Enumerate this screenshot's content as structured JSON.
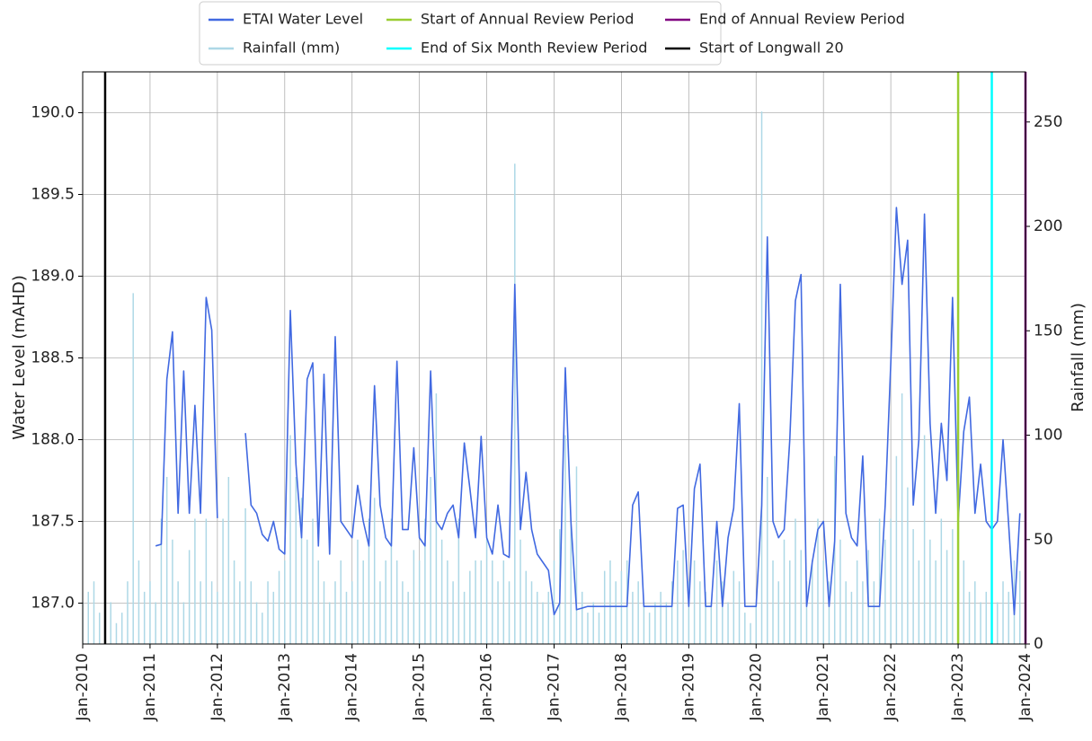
{
  "chart_data": {
    "type": "line",
    "y_label": "Water Level (mAHD)",
    "y2_label": "Rainfall (mm)",
    "xlim": [
      "2010-01",
      "2024-01"
    ],
    "xticks": [
      {
        "value": "2010-01",
        "label": "Jan-2010"
      },
      {
        "value": "2011-01",
        "label": "Jan-2011"
      },
      {
        "value": "2012-01",
        "label": "Jan-2012"
      },
      {
        "value": "2013-01",
        "label": "Jan-2013"
      },
      {
        "value": "2014-01",
        "label": "Jan-2014"
      },
      {
        "value": "2015-01",
        "label": "Jan-2015"
      },
      {
        "value": "2016-01",
        "label": "Jan-2016"
      },
      {
        "value": "2017-01",
        "label": "Jan-2017"
      },
      {
        "value": "2018-01",
        "label": "Jan-2018"
      },
      {
        "value": "2019-01",
        "label": "Jan-2019"
      },
      {
        "value": "2020-01",
        "label": "Jan-2020"
      },
      {
        "value": "2021-01",
        "label": "Jan-2021"
      },
      {
        "value": "2022-01",
        "label": "Jan-2022"
      },
      {
        "value": "2023-01",
        "label": "Jan-2023"
      },
      {
        "value": "2024-01",
        "label": "Jan-2024"
      }
    ],
    "ylim": [
      186.75,
      190.25
    ],
    "yticks": [
      {
        "value": 187,
        "label": "187.0"
      },
      {
        "value": 187.5,
        "label": "187.5"
      },
      {
        "value": 188,
        "label": "188.0"
      },
      {
        "value": 188.5,
        "label": "188.5"
      },
      {
        "value": 189,
        "label": "189.0"
      },
      {
        "value": 189.5,
        "label": "189.5"
      },
      {
        "value": 190,
        "label": "190.0"
      }
    ],
    "y2lim": [
      0,
      274
    ],
    "y2ticks": [
      0,
      50,
      100,
      150,
      200,
      250
    ],
    "grid": true,
    "legend": "upper center",
    "x": [
      "2010-01",
      "2010-02",
      "2010-03",
      "2010-04",
      "2010-05",
      "2010-06",
      "2010-07",
      "2010-08",
      "2010-09",
      "2010-10",
      "2010-11",
      "2010-12",
      "2011-01",
      "2011-02",
      "2011-03",
      "2011-04",
      "2011-05",
      "2011-06",
      "2011-07",
      "2011-08",
      "2011-09",
      "2011-10",
      "2011-11",
      "2011-12",
      "2012-01",
      "2012-02",
      "2012-03",
      "2012-04",
      "2012-05",
      "2012-06",
      "2012-07",
      "2012-08",
      "2012-09",
      "2012-10",
      "2012-11",
      "2012-12",
      "2013-01",
      "2013-02",
      "2013-03",
      "2013-04",
      "2013-05",
      "2013-06",
      "2013-07",
      "2013-08",
      "2013-09",
      "2013-10",
      "2013-11",
      "2013-12",
      "2014-01",
      "2014-02",
      "2014-03",
      "2014-04",
      "2014-05",
      "2014-06",
      "2014-07",
      "2014-08",
      "2014-09",
      "2014-10",
      "2014-11",
      "2014-12",
      "2015-01",
      "2015-02",
      "2015-03",
      "2015-04",
      "2015-05",
      "2015-06",
      "2015-07",
      "2015-08",
      "2015-09",
      "2015-10",
      "2015-11",
      "2015-12",
      "2016-01",
      "2016-02",
      "2016-03",
      "2016-04",
      "2016-05",
      "2016-06",
      "2016-07",
      "2016-08",
      "2016-09",
      "2016-10",
      "2016-11",
      "2016-12",
      "2017-01",
      "2017-02",
      "2017-03",
      "2017-04",
      "2017-05",
      "2017-06",
      "2017-07",
      "2017-08",
      "2017-09",
      "2017-10",
      "2017-11",
      "2017-12",
      "2018-01",
      "2018-02",
      "2018-03",
      "2018-04",
      "2018-05",
      "2018-06",
      "2018-07",
      "2018-08",
      "2018-09",
      "2018-10",
      "2018-11",
      "2018-12",
      "2019-01",
      "2019-02",
      "2019-03",
      "2019-04",
      "2019-05",
      "2019-06",
      "2019-07",
      "2019-08",
      "2019-09",
      "2019-10",
      "2019-11",
      "2019-12",
      "2020-01",
      "2020-02",
      "2020-03",
      "2020-04",
      "2020-05",
      "2020-06",
      "2020-07",
      "2020-08",
      "2020-09",
      "2020-10",
      "2020-11",
      "2020-12",
      "2021-01",
      "2021-02",
      "2021-03",
      "2021-04",
      "2021-05",
      "2021-06",
      "2021-07",
      "2021-08",
      "2021-09",
      "2021-10",
      "2021-11",
      "2021-12",
      "2022-01",
      "2022-02",
      "2022-03",
      "2022-04",
      "2022-05",
      "2022-06",
      "2022-07",
      "2022-08",
      "2022-09",
      "2022-10",
      "2022-11",
      "2022-12",
      "2023-01",
      "2023-02",
      "2023-03",
      "2023-04",
      "2023-05",
      "2023-06",
      "2023-07",
      "2023-08",
      "2023-09",
      "2023-10",
      "2023-11",
      "2023-12"
    ],
    "series": [
      {
        "name": "ETAI Water Level",
        "color": "#4169e1",
        "axis": "y",
        "values": [
          null,
          null,
          null,
          null,
          null,
          null,
          null,
          null,
          null,
          null,
          null,
          null,
          null,
          187.35,
          187.36,
          188.37,
          188.66,
          187.55,
          188.42,
          187.55,
          188.21,
          187.55,
          188.87,
          188.67,
          187.52,
          null,
          null,
          null,
          null,
          188.04,
          187.6,
          187.55,
          187.42,
          187.38,
          187.5,
          187.33,
          187.3,
          188.79,
          187.85,
          187.4,
          188.37,
          188.47,
          187.35,
          188.4,
          187.3,
          188.63,
          187.5,
          187.45,
          187.4,
          187.72,
          187.5,
          187.35,
          188.33,
          187.6,
          187.4,
          187.35,
          188.48,
          187.45,
          187.45,
          187.95,
          187.4,
          187.35,
          188.42,
          187.5,
          187.45,
          187.55,
          187.6,
          187.4,
          187.98,
          187.7,
          187.4,
          188.02,
          187.4,
          187.3,
          187.6,
          187.3,
          187.28,
          188.95,
          187.45,
          187.8,
          187.45,
          187.3,
          187.25,
          187.2,
          186.93,
          187.0,
          188.44,
          187.5,
          186.96,
          186.97,
          186.98,
          186.98,
          186.98,
          186.98,
          186.98,
          186.98,
          186.98,
          186.98,
          187.6,
          187.68,
          186.98,
          186.98,
          186.98,
          186.98,
          186.98,
          186.98,
          187.58,
          187.6,
          186.98,
          187.7,
          187.85,
          186.98,
          186.98,
          187.5,
          186.98,
          187.4,
          187.58,
          188.22,
          186.98,
          186.98,
          186.98,
          187.6,
          189.24,
          187.5,
          187.4,
          187.45,
          188.0,
          188.85,
          189.01,
          186.98,
          187.25,
          187.45,
          187.5,
          186.98,
          187.38,
          188.95,
          187.55,
          187.4,
          187.35,
          187.9,
          186.98,
          186.98,
          186.98,
          187.6,
          188.47,
          189.42,
          188.95,
          189.22,
          187.6,
          188.0,
          189.38,
          188.1,
          187.55,
          188.1,
          187.75,
          188.87,
          187.5,
          188.05,
          188.26,
          187.55,
          187.85,
          187.5,
          187.45,
          187.5,
          188.0,
          187.48,
          186.93,
          187.55
        ]
      },
      {
        "name": "Rainfall (mm)",
        "color": "#add8e6",
        "axis": "y2",
        "values": [
          20,
          25,
          30,
          15,
          85,
          20,
          10,
          15,
          30,
          168,
          40,
          25,
          30,
          20,
          60,
          80,
          50,
          30,
          20,
          45,
          60,
          30,
          60,
          30,
          25,
          60,
          80,
          40,
          30,
          65,
          30,
          20,
          15,
          30,
          25,
          35,
          40,
          100,
          80,
          70,
          50,
          60,
          40,
          30,
          20,
          30,
          40,
          25,
          30,
          50,
          40,
          60,
          70,
          30,
          40,
          60,
          40,
          30,
          25,
          45,
          40,
          60,
          80,
          120,
          50,
          40,
          30,
          60,
          25,
          35,
          40,
          40,
          50,
          40,
          30,
          40,
          30,
          230,
          50,
          35,
          30,
          25,
          20,
          25,
          40,
          55,
          100,
          60,
          85,
          25,
          15,
          20,
          15,
          35,
          40,
          30,
          35,
          40,
          25,
          30,
          20,
          15,
          20,
          25,
          20,
          30,
          40,
          45,
          30,
          40,
          30,
          25,
          20,
          40,
          30,
          20,
          35,
          30,
          15,
          10,
          20,
          255,
          80,
          40,
          30,
          50,
          40,
          60,
          45,
          30,
          40,
          60,
          40,
          30,
          90,
          50,
          30,
          25,
          40,
          30,
          45,
          30,
          60,
          50,
          60,
          90,
          120,
          75,
          55,
          40,
          100,
          50,
          40,
          60,
          45,
          55,
          30,
          40,
          25,
          30,
          20,
          25,
          15,
          20,
          30,
          25,
          40,
          35
        ]
      }
    ],
    "vlines": [
      {
        "name": "Start of Annual Review Period",
        "color": "#9acd32",
        "x": "2023-01"
      },
      {
        "name": "End of Six Month Review Period",
        "color": "#00ffff",
        "x": "2023-07"
      },
      {
        "name": "End of Annual Review Period",
        "color": "#800080",
        "x": "2024-01"
      },
      {
        "name": "Start of Longwall 20",
        "color": "#000000",
        "x": "2010-05"
      }
    ]
  }
}
